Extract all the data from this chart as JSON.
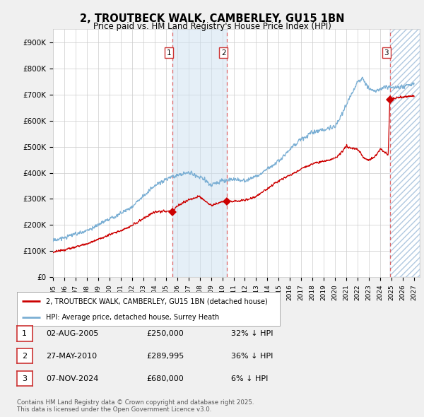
{
  "title": "2, TROUTBECK WALK, CAMBERLEY, GU15 1BN",
  "subtitle": "Price paid vs. HM Land Registry's House Price Index (HPI)",
  "background_color": "#f0f0f0",
  "plot_bg_color": "#ffffff",
  "ylim": [
    0,
    950000
  ],
  "yticks": [
    0,
    100000,
    200000,
    300000,
    400000,
    500000,
    600000,
    700000,
    800000,
    900000
  ],
  "ytick_labels": [
    "£0",
    "£100K",
    "£200K",
    "£300K",
    "£400K",
    "£500K",
    "£600K",
    "£700K",
    "£800K",
    "£900K"
  ],
  "xlim_start": 1995.0,
  "xlim_end": 2027.5,
  "sale_dates": [
    2005.58,
    2010.41,
    2024.85
  ],
  "sale_prices": [
    250000,
    289995,
    680000
  ],
  "sale_labels": [
    "1",
    "2",
    "3"
  ],
  "red_color": "#cc0000",
  "blue_color": "#7bafd4",
  "shade_color": "#cde0f0",
  "hatch_color": "#b0c8e0",
  "legend_label_red": "2, TROUTBECK WALK, CAMBERLEY, GU15 1BN (detached house)",
  "legend_label_blue": "HPI: Average price, detached house, Surrey Heath",
  "table_rows": [
    [
      "1",
      "02-AUG-2005",
      "£250,000",
      "32% ↓ HPI"
    ],
    [
      "2",
      "27-MAY-2010",
      "£289,995",
      "36% ↓ HPI"
    ],
    [
      "3",
      "07-NOV-2024",
      "£680,000",
      "6% ↓ HPI"
    ]
  ],
  "footnote": "Contains HM Land Registry data © Crown copyright and database right 2025.\nThis data is licensed under the Open Government Licence v3.0.",
  "hpi_start_year": 1995,
  "hpi_end_year": 2027
}
